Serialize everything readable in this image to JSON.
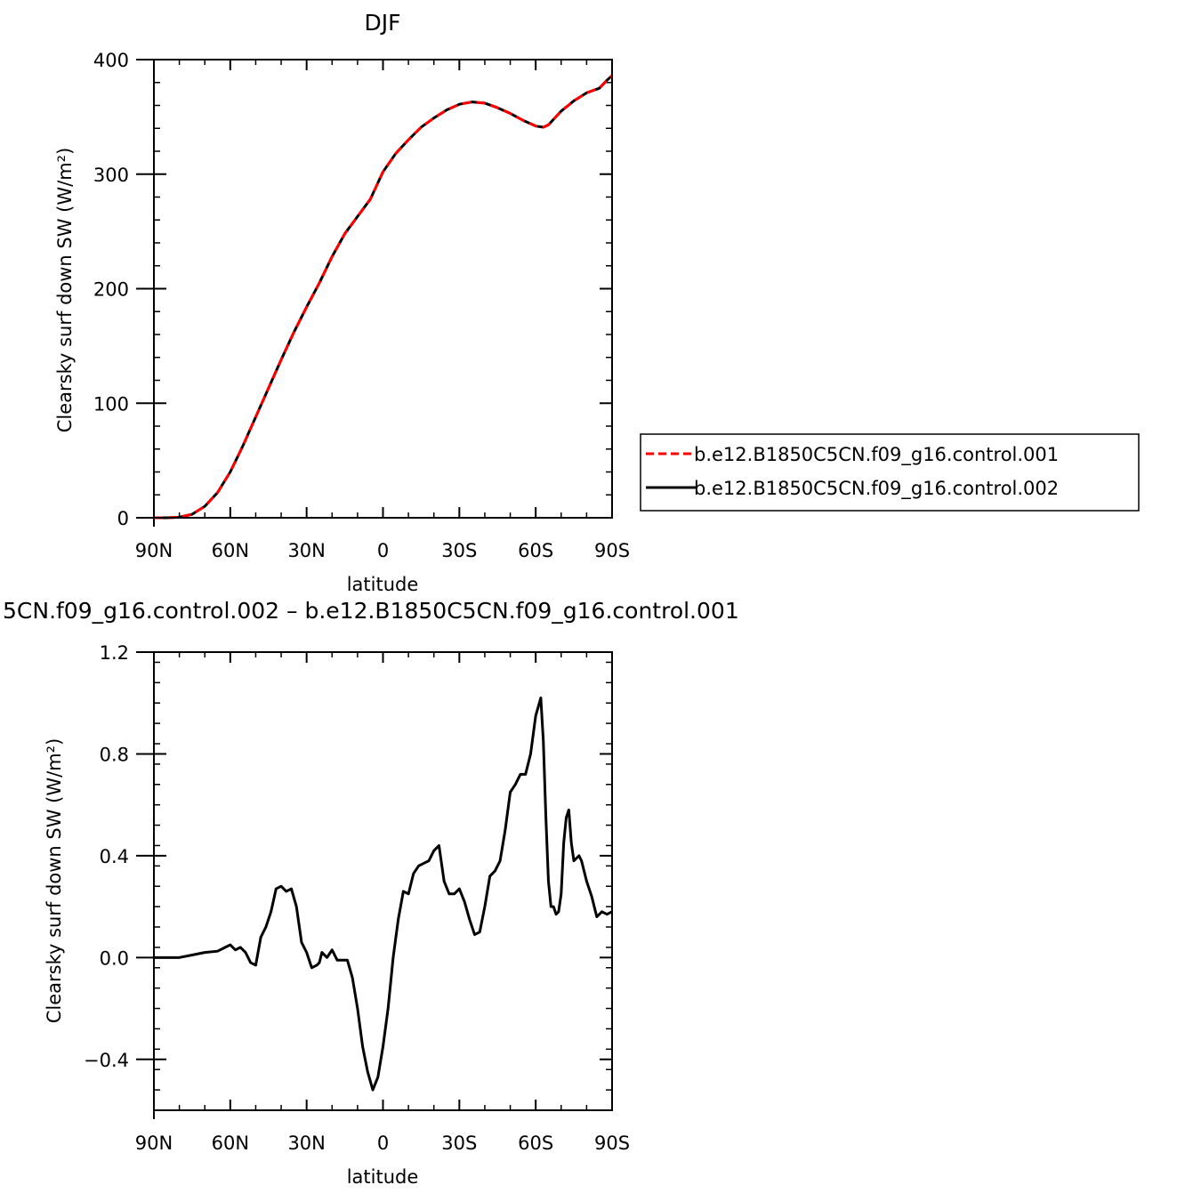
{
  "colors": {
    "series_1": "#ff0000",
    "series_2": "#000000",
    "axis": "#000000"
  },
  "chart_data": [
    {
      "type": "line",
      "title": "DJF",
      "xlabel": "latitude",
      "ylabel": "Clearsky surf down SW (W/m²)",
      "xlim": [
        90,
        -90
      ],
      "ylim": [
        0,
        400
      ],
      "x_ticks": [
        90,
        60,
        30,
        0,
        -30,
        -60,
        -90
      ],
      "x_tick_labels": [
        "90N",
        "60N",
        "30N",
        "0",
        "30S",
        "60S",
        "90S"
      ],
      "y_ticks": [
        0,
        100,
        200,
        300,
        400
      ],
      "y_tick_labels": [
        "0",
        "100",
        "200",
        "300",
        "400"
      ],
      "grid": false,
      "legend_position": "right",
      "x": [
        90,
        85,
        80,
        75,
        70,
        65,
        60,
        55,
        50,
        45,
        40,
        35,
        30,
        25,
        20,
        15,
        10,
        5,
        0,
        -5,
        -10,
        -15,
        -20,
        -25,
        -30,
        -35,
        -40,
        -45,
        -50,
        -55,
        -60,
        -63,
        -65,
        -70,
        -75,
        -80,
        -85,
        -88,
        -90
      ],
      "series": [
        {
          "name": "b.e12.B1850C5CN.f09_g16.control.001",
          "style": "dashed",
          "values": [
            0,
            0,
            0.5,
            3,
            10,
            22,
            40,
            63,
            88,
            113,
            138,
            162,
            184,
            205,
            228,
            248,
            263,
            278,
            302,
            318,
            330,
            341,
            349,
            356,
            361,
            363,
            362,
            358,
            353,
            347,
            342,
            341,
            343,
            355,
            364,
            371,
            375,
            382,
            386
          ]
        },
        {
          "name": "b.e12.B1850C5CN.f09_g16.control.002",
          "style": "solid",
          "values": [
            0,
            0,
            0.5,
            3,
            10,
            22,
            40,
            63,
            88,
            113,
            138,
            162,
            184,
            205,
            228,
            248,
            263,
            278,
            302,
            318,
            330,
            341,
            349,
            356,
            361,
            363,
            362,
            358,
            353,
            347,
            342,
            341,
            343,
            355,
            364,
            371,
            375,
            382,
            386
          ]
        }
      ]
    },
    {
      "type": "line",
      "title": "5CN.f09_g16.control.002 – b.e12.B1850C5CN.f09_g16.control.001",
      "xlabel": "latitude",
      "ylabel": "Clearsky surf down SW (W/m²)",
      "xlim": [
        90,
        -90
      ],
      "ylim": [
        -0.6,
        1.2
      ],
      "x_ticks": [
        90,
        60,
        30,
        0,
        -30,
        -60,
        -90
      ],
      "x_tick_labels": [
        "90N",
        "60N",
        "30N",
        "0",
        "30S",
        "60S",
        "90S"
      ],
      "y_ticks": [
        -0.4,
        0.0,
        0.4,
        0.8,
        1.2
      ],
      "y_tick_labels": [
        "−0.4",
        "0.0",
        "0.4",
        "0.8",
        "1.2"
      ],
      "grid": false,
      "x": [
        90,
        80,
        75,
        70,
        65,
        62,
        60,
        58,
        56,
        54,
        52,
        50,
        48,
        46,
        44,
        42,
        40,
        38,
        36,
        34,
        32,
        30,
        28,
        26,
        25,
        24,
        22,
        20,
        18,
        16,
        14,
        12,
        10,
        8,
        6,
        4,
        2,
        0,
        -2,
        -4,
        -6,
        -8,
        -10,
        -12,
        -14,
        -16,
        -18,
        -20,
        -22,
        -24,
        -26,
        -28,
        -29,
        -30,
        -32,
        -34,
        -36,
        -38,
        -40,
        -42,
        -44,
        -46,
        -48,
        -50,
        -52,
        -54,
        -56,
        -58,
        -60,
        -62,
        -63,
        -64,
        -65,
        -66,
        -67,
        -68,
        -69,
        -70,
        -71,
        -72,
        -73,
        -74,
        -75,
        -76,
        -77,
        -78,
        -80,
        -82,
        -84,
        -86,
        -88,
        -90
      ],
      "series": [
        {
          "name": "",
          "values": [
            0.0,
            0.0,
            0.01,
            0.02,
            0.025,
            0.04,
            0.05,
            0.03,
            0.04,
            0.02,
            -0.02,
            -0.03,
            0.08,
            0.12,
            0.18,
            0.27,
            0.28,
            0.26,
            0.27,
            0.2,
            0.06,
            0.02,
            -0.04,
            -0.03,
            -0.02,
            0.02,
            0.0,
            0.03,
            -0.01,
            -0.01,
            -0.01,
            -0.08,
            -0.2,
            -0.35,
            -0.45,
            -0.52,
            -0.47,
            -0.35,
            -0.2,
            0.0,
            0.15,
            0.26,
            0.25,
            0.33,
            0.36,
            0.37,
            0.38,
            0.42,
            0.44,
            0.3,
            0.25,
            0.25,
            0.26,
            0.27,
            0.22,
            0.15,
            0.09,
            0.1,
            0.2,
            0.32,
            0.34,
            0.38,
            0.5,
            0.65,
            0.68,
            0.72,
            0.72,
            0.8,
            0.95,
            1.02,
            0.85,
            0.55,
            0.3,
            0.2,
            0.2,
            0.17,
            0.18,
            0.25,
            0.45,
            0.55,
            0.58,
            0.45,
            0.38,
            0.39,
            0.4,
            0.38,
            0.3,
            0.24,
            0.16,
            0.18,
            0.17,
            0.18
          ]
        }
      ]
    }
  ]
}
